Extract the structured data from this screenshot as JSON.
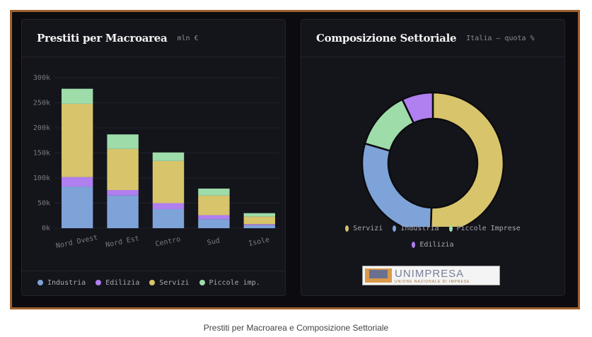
{
  "left_panel": {
    "title": "Prestiti per Macroarea",
    "subtitle": "mln €"
  },
  "right_panel": {
    "title": "Composizione Settoriale",
    "subtitle": "Italia — quota %"
  },
  "caption": "Prestiti per Macroarea e Composizione Settoriale",
  "logo": {
    "name": "UNIMPRESA",
    "tagline": "UNIONE NAZIONALE DI IMPRESE"
  },
  "chart_data": [
    {
      "type": "bar",
      "stacked": true,
      "title": "Prestiti per Macroarea",
      "ylabel": "mln €",
      "ylim": [
        0,
        300000
      ],
      "yticks": [
        "0k",
        "50k",
        "100k",
        "150k",
        "200k",
        "250k",
        "300k"
      ],
      "categories": [
        "Nord Ovest",
        "Nord Est",
        "Centro",
        "Sud",
        "Isole"
      ],
      "series": [
        {
          "name": "Industria",
          "color": "#7ea3d8",
          "values": [
            83000,
            65000,
            38000,
            18000,
            6000
          ]
        },
        {
          "name": "Edilizia",
          "color": "#b07ff0",
          "values": [
            19000,
            11000,
            12000,
            8000,
            2000
          ]
        },
        {
          "name": "Servizi",
          "color": "#d8c46a",
          "values": [
            146000,
            82000,
            84000,
            39000,
            15000
          ]
        },
        {
          "name": "Piccole imp.",
          "color": "#9edcaa",
          "values": [
            30000,
            29000,
            17000,
            14000,
            7000
          ]
        }
      ],
      "legend": "bottom",
      "grid": true
    },
    {
      "type": "pie",
      "donut": true,
      "title": "Composizione Settoriale",
      "subtitle": "Italia — quota %",
      "labels": [
        "Servizi",
        "Industria",
        "Piccole Imprese",
        "Edilizia"
      ],
      "values": [
        50.5,
        29.0,
        13.4,
        7.1
      ],
      "colors": [
        "#d8c46a",
        "#7ea3d8",
        "#9edcaa",
        "#b07ff0"
      ],
      "legend": "bottom"
    }
  ]
}
